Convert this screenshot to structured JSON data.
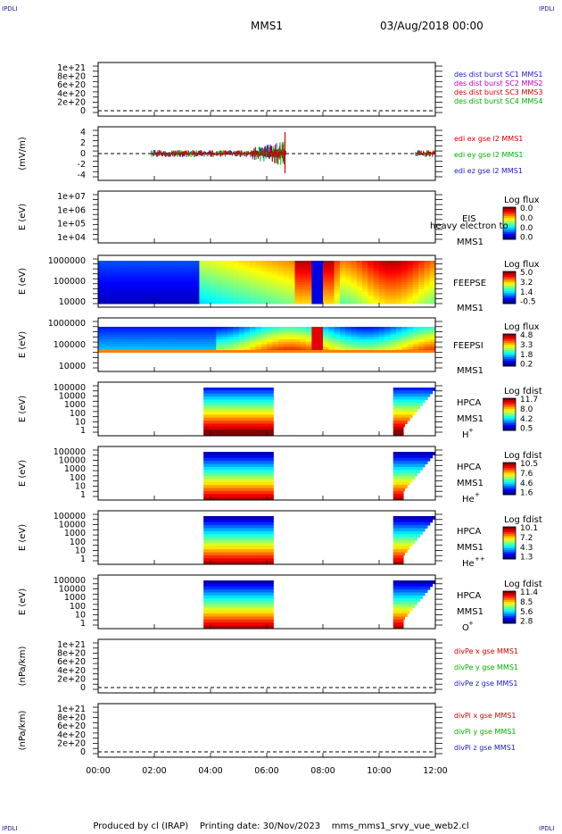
{
  "header": {
    "corner_label": "IPDLI",
    "spacecraft": "MMS1",
    "date": "03/Aug/2018 00:00"
  },
  "footer": {
    "produced_by": "Produced by cl (IRAP)",
    "printing_date": "Printing date: 30/Nov/2023",
    "file": "mms_mms1_srvy_vue_web2.cl"
  },
  "colors": {
    "blue": "#1a1ad0",
    "magenta": "#c000c0",
    "red": "#d00000",
    "green": "#00b000"
  },
  "chart_data": {
    "type": "heatmap",
    "x_ticks": [
      "00:00",
      "02:00",
      "04:00",
      "06:00",
      "08:00",
      "10:00",
      "12:00"
    ],
    "x_range_hours": [
      0,
      12
    ],
    "panels": [
      {
        "id": "p1",
        "kind": "line",
        "ylabel": "",
        "ticks": [
          "1e+21",
          "8e+20",
          "6e+20",
          "4e+20",
          "2e+20",
          "0"
        ],
        "legend": [
          {
            "text": "des dist burst SC1 MMS1",
            "color": "#1a1ad0"
          },
          {
            "text": "des dist burst SC2 MMS2",
            "color": "#c000c0"
          },
          {
            "text": "des dist burst SC3 MMS3",
            "color": "#d00000"
          },
          {
            "text": "des dist burst SC4 MMS4",
            "color": "#00b000"
          }
        ]
      },
      {
        "id": "p2",
        "kind": "efield",
        "ylabel": "(mV/m)",
        "ticks": [
          "4",
          "2",
          "0",
          "-2",
          "-4"
        ],
        "legend": [
          {
            "text": "edi ex gse l2 MMS1",
            "color": "#d00000"
          },
          {
            "text": "edi ey gse l2 MMS1",
            "color": "#00b000"
          },
          {
            "text": "edi ez gse l2 MMS1",
            "color": "#1a1ad0"
          }
        ]
      },
      {
        "id": "p3",
        "kind": "spec-empty",
        "ylabel": "E (eV)",
        "ticks": [
          "1e+07",
          "1e+06",
          "1e+05",
          "1e+04"
        ],
        "labels": [
          "EIS",
          "heavy electron to",
          "MMS1"
        ],
        "cb_title": "Log flux",
        "cb_ticks": [
          "0.0",
          "0.0",
          "0.0",
          "0.0"
        ]
      },
      {
        "id": "p4",
        "kind": "feepse",
        "ylabel": "E (eV)",
        "ticks": [
          "1000000",
          "100000",
          "10000"
        ],
        "labels": [
          "FEEPSE",
          "MMS1"
        ],
        "cb_title": "Log flux",
        "cb_ticks": [
          "5.0",
          "3.2",
          "1.4",
          "-0.5"
        ]
      },
      {
        "id": "p5",
        "kind": "feepsi",
        "ylabel": "E (eV)",
        "ticks": [
          "1000000",
          "100000",
          "10000"
        ],
        "labels": [
          "FEEPSI",
          "MMS1"
        ],
        "cb_title": "Log flux",
        "cb_ticks": [
          "4.8",
          "3.3",
          "1.8",
          "0.2"
        ]
      },
      {
        "id": "p6",
        "kind": "hpca",
        "ylabel": "E (eV)",
        "ticks": [
          "100000",
          "10000",
          "1000",
          "100",
          "10",
          "1"
        ],
        "labels": [
          "HPCA",
          "MMS1"
        ],
        "species": "H",
        "species_sup": "+",
        "cb_title": "Log fdist",
        "cb_ticks": [
          "11.7",
          "8.0",
          "4.2",
          "0.5"
        ]
      },
      {
        "id": "p7",
        "kind": "hpca",
        "ylabel": "E (eV)",
        "ticks": [
          "100000",
          "10000",
          "1000",
          "100",
          "10",
          "1"
        ],
        "labels": [
          "HPCA",
          "MMS1"
        ],
        "species": "He",
        "species_sup": "+",
        "cb_title": "Log fdist",
        "cb_ticks": [
          "10.5",
          "7.6",
          "4.6",
          "1.6"
        ]
      },
      {
        "id": "p8",
        "kind": "hpca",
        "ylabel": "E (eV)",
        "ticks": [
          "100000",
          "10000",
          "1000",
          "100",
          "10",
          "1"
        ],
        "labels": [
          "HPCA",
          "MMS1"
        ],
        "species": "He",
        "species_sup": "++",
        "cb_title": "Log fdist",
        "cb_ticks": [
          "10.1",
          "7.2",
          "4.3",
          "1.3"
        ]
      },
      {
        "id": "p9",
        "kind": "hpca",
        "ylabel": "E (eV)",
        "ticks": [
          "100000",
          "10000",
          "1000",
          "100",
          "10",
          "1"
        ],
        "labels": [
          "HPCA",
          "MMS1"
        ],
        "species": "O",
        "species_sup": "+",
        "cb_title": "Log fdist",
        "cb_ticks": [
          "11.4",
          "8.5",
          "5.6",
          "2.8"
        ]
      },
      {
        "id": "p10",
        "kind": "line",
        "ylabel": "(nPa/km)",
        "ticks": [
          "1e+21",
          "8e+20",
          "6e+20",
          "4e+20",
          "2e+20",
          "0"
        ],
        "legend": [
          {
            "text": "divPe x gse MMS1",
            "color": "#d00000"
          },
          {
            "text": "divPe y gse MMS1",
            "color": "#00b000"
          },
          {
            "text": "divPe z gse MMS1",
            "color": "#1a1ad0"
          }
        ]
      },
      {
        "id": "p11",
        "kind": "line",
        "ylabel": "(nPa/km)",
        "ticks": [
          "1e+21",
          "8e+20",
          "6e+20",
          "4e+20",
          "2e+20",
          "0"
        ],
        "legend": [
          {
            "text": "divPi x gse MMS1",
            "color": "#d00000"
          },
          {
            "text": "divPi y gse MMS1",
            "color": "#00b000"
          },
          {
            "text": "divPi z gse MMS1",
            "color": "#1a1ad0"
          }
        ]
      }
    ],
    "hpca_intervals_hours": [
      [
        3.75,
        6.25
      ],
      [
        10.5,
        12.0
      ]
    ],
    "efield_intervals_hours": [
      [
        1.9,
        6.7
      ],
      [
        11.3,
        12.0
      ]
    ]
  }
}
